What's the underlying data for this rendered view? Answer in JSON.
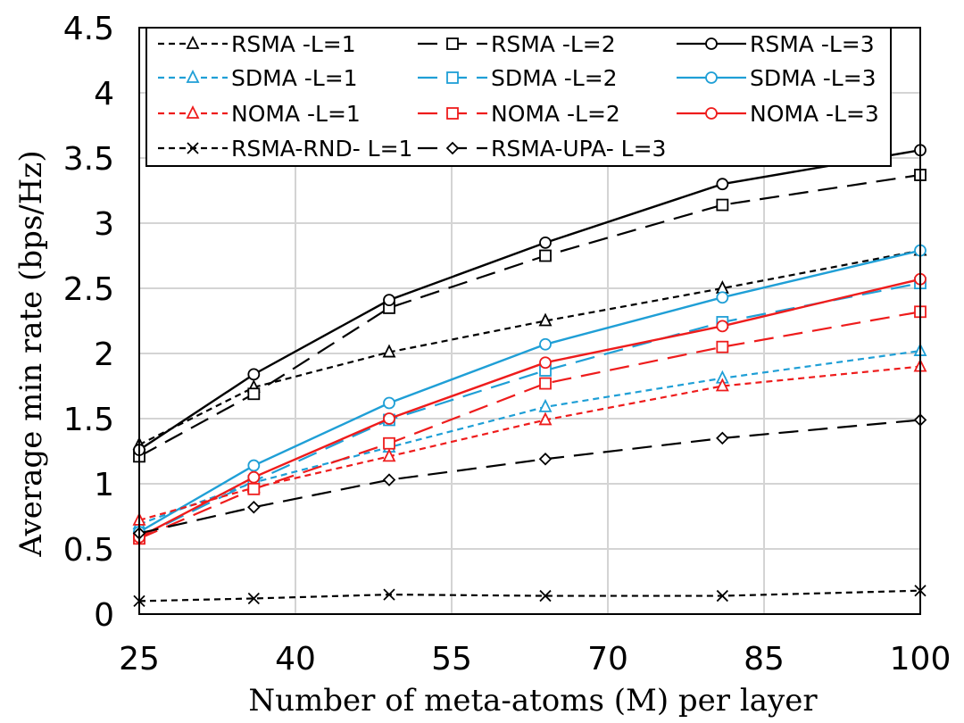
{
  "chart_data": {
    "type": "line",
    "title": "",
    "xlabel": "Number of meta-atoms (M) per layer",
    "ylabel": "Average min rate (bps/Hz)",
    "xlim": [
      25,
      100
    ],
    "ylim": [
      0,
      4.5
    ],
    "xticks": [
      "25",
      "40",
      "55",
      "70",
      "85",
      "100"
    ],
    "yticks": [
      "0",
      "0.5",
      "1",
      "1.5",
      "2",
      "2.5",
      "3",
      "3.5",
      "4",
      "4.5"
    ],
    "grid": true,
    "legend_position": "top",
    "x": [
      25,
      36,
      49,
      64,
      81,
      100
    ],
    "series": [
      {
        "name": "RSMA -L=1",
        "color": "#000000",
        "dash": "short",
        "marker": "triangle",
        "values": [
          1.3,
          1.74,
          2.01,
          2.25,
          2.5,
          2.79
        ]
      },
      {
        "name": "RSMA -L=2",
        "color": "#000000",
        "dash": "long",
        "marker": "square",
        "values": [
          1.21,
          1.69,
          2.35,
          2.75,
          3.14,
          3.37
        ]
      },
      {
        "name": "RSMA -L=3",
        "color": "#000000",
        "dash": "solid",
        "marker": "circle",
        "values": [
          1.26,
          1.84,
          2.41,
          2.85,
          3.3,
          3.56
        ]
      },
      {
        "name": "SDMA -L=1",
        "color": "#1f9fd6",
        "dash": "short",
        "marker": "triangle",
        "values": [
          0.69,
          1.01,
          1.28,
          1.59,
          1.81,
          2.02
        ]
      },
      {
        "name": "SDMA -L=2",
        "color": "#1f9fd6",
        "dash": "long",
        "marker": "square",
        "values": [
          0.59,
          1.02,
          1.49,
          1.87,
          2.24,
          2.54
        ]
      },
      {
        "name": "SDMA -L=3",
        "color": "#1f9fd6",
        "dash": "solid",
        "marker": "circle",
        "values": [
          0.63,
          1.14,
          1.62,
          2.07,
          2.43,
          2.79
        ]
      },
      {
        "name": "NOMA -L=1",
        "color": "#ee1c1c",
        "dash": "short",
        "marker": "triangle",
        "values": [
          0.72,
          0.97,
          1.21,
          1.49,
          1.75,
          1.9
        ]
      },
      {
        "name": "NOMA -L=2",
        "color": "#ee1c1c",
        "dash": "long",
        "marker": "square",
        "values": [
          0.58,
          0.96,
          1.31,
          1.77,
          2.05,
          2.32
        ]
      },
      {
        "name": "NOMA -L=3",
        "color": "#ee1c1c",
        "dash": "solid",
        "marker": "circle",
        "values": [
          0.59,
          1.05,
          1.5,
          1.93,
          2.21,
          2.57
        ]
      },
      {
        "name": "RSMA-RND- L=1",
        "color": "#000000",
        "dash": "short",
        "marker": "x",
        "values": [
          0.1,
          0.12,
          0.15,
          0.14,
          0.14,
          0.18
        ]
      },
      {
        "name": "RSMA-UPA- L=3",
        "color": "#000000",
        "dash": "long",
        "marker": "diamond",
        "values": [
          0.62,
          0.82,
          1.03,
          1.19,
          1.35,
          1.49
        ]
      }
    ]
  }
}
